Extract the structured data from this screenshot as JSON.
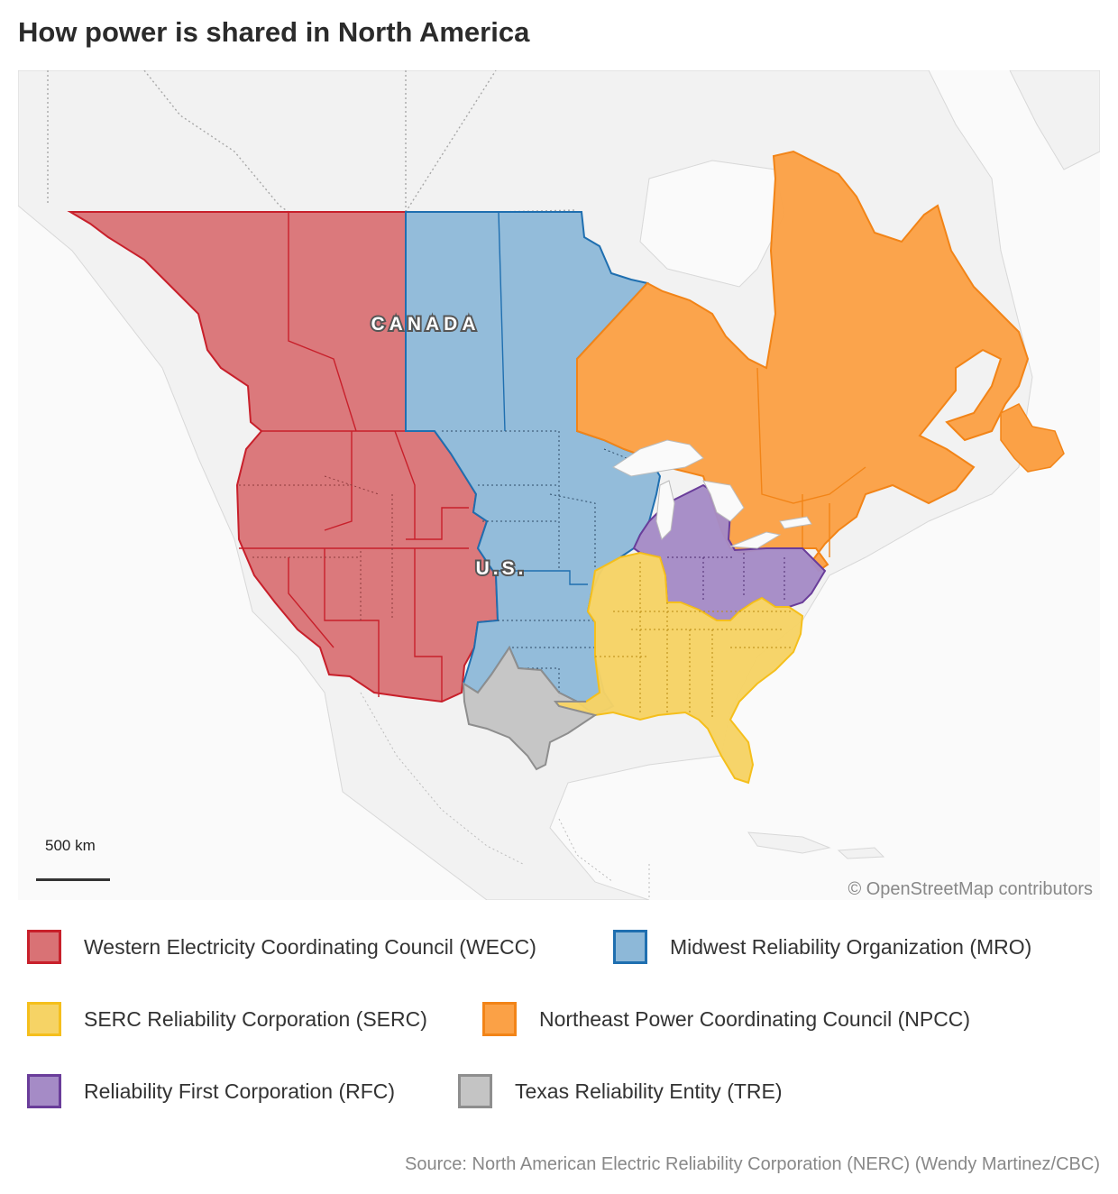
{
  "title": "How power is shared in North America",
  "map": {
    "labels": {
      "canada": "CANADA",
      "us": "U.S."
    },
    "scale": {
      "value": "500 km"
    },
    "credit": "© OpenStreetMap contributors",
    "colors": {
      "land": "#f2f2f2",
      "water": "#fafafa",
      "border": "#a8a8a8"
    }
  },
  "legend": [
    {
      "label": "Western Electricity Coordinating Council (WECC)",
      "fill": "#d97275",
      "stroke": "#c8202b"
    },
    {
      "label": "Midwest Reliability Organization (MRO)",
      "fill": "#8db8d8",
      "stroke": "#1f6fb0"
    },
    {
      "label": "SERC Reliability Corporation (SERC)",
      "fill": "#f6d365",
      "stroke": "#f5bf1c"
    },
    {
      "label": "Northeast Power Coordinating Council (NPCC)",
      "fill": "#fba146",
      "stroke": "#f28417"
    },
    {
      "label": "Reliability First Corporation (RFC)",
      "fill": "#a58bc6",
      "stroke": "#6a3d9a"
    },
    {
      "label": "Texas Reliability Entity (TRE)",
      "fill": "#c4c4c4",
      "stroke": "#8e8e8e"
    }
  ],
  "source": "Source: North American Electric Reliability Corporation (NERC) (Wendy Martinez/CBC)"
}
